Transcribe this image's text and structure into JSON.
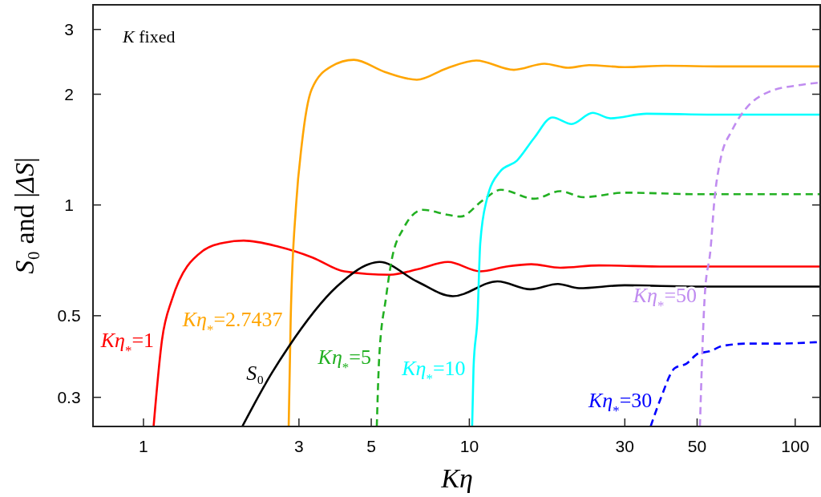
{
  "chart_data": {
    "type": "line",
    "xlabel": "Kη",
    "ylabel": "S₀   and   |ΔS|",
    "log": "xy",
    "xlim": [
      0.7,
      120
    ],
    "xticks": [
      1,
      3,
      5,
      10,
      30,
      50,
      100
    ],
    "ylim": [
      0.25,
      3.5
    ],
    "yticks": [
      0.3,
      0.5,
      1,
      2,
      3
    ],
    "grid": false,
    "marker": "none",
    "series": [
      {
        "name": "Kη$_{*}$=1",
        "color": "#ff0000",
        "line_style": "solid",
        "x": [
          1.074,
          1.14,
          1.22,
          1.52,
          1.77,
          2.03,
          2.6,
          3.3,
          4.13,
          5.7,
          7.0,
          8.6,
          10.8,
          13.0,
          15.5,
          19,
          25,
          40,
          70,
          120
        ],
        "values": [
          0.25,
          0.43,
          0.55,
          0.75,
          0.79,
          0.8,
          0.77,
          0.72,
          0.66,
          0.646,
          0.67,
          0.7,
          0.66,
          0.68,
          0.69,
          0.675,
          0.685,
          0.68,
          0.68,
          0.68
        ]
      },
      {
        "name": "Kη$_{*}$=2.7437",
        "color": "#ffa500",
        "line_style": "solid",
        "x": [
          2.79,
          2.83,
          2.94,
          3.06,
          3.28,
          3.77,
          4.42,
          5.5,
          6.9,
          8.5,
          10.5,
          13.7,
          17.0,
          20.1,
          23.3,
          30,
          40,
          60,
          120
        ],
        "values": [
          0.25,
          0.49,
          1.0,
          1.46,
          2.06,
          2.38,
          2.48,
          2.3,
          2.19,
          2.35,
          2.47,
          2.33,
          2.42,
          2.36,
          2.4,
          2.37,
          2.39,
          2.38,
          2.38
        ]
      },
      {
        "name": "S₀",
        "color": "#000000",
        "line_style": "solid",
        "x": [
          2.01,
          2.48,
          2.78,
          3.92,
          4.9,
          5.3,
          6.9,
          8.9,
          12.2,
          15.4,
          18.7,
          21.7,
          30,
          50,
          120
        ],
        "values": [
          0.25,
          0.35,
          0.41,
          0.6,
          0.69,
          0.7,
          0.62,
          0.565,
          0.62,
          0.59,
          0.61,
          0.594,
          0.605,
          0.6,
          0.6
        ]
      },
      {
        "name": "Kη$_{*}$=5",
        "color": "#22b022",
        "line_style": "dashed",
        "x": [
          5.2,
          5.29,
          5.55,
          5.78,
          6.26,
          7.2,
          8.6,
          9.4,
          11.0,
          12.5,
          15.8,
          19.0,
          22.4,
          30,
          50,
          120
        ],
        "values": [
          0.25,
          0.386,
          0.56,
          0.71,
          0.86,
          0.97,
          0.94,
          0.93,
          1.03,
          1.1,
          1.04,
          1.09,
          1.05,
          1.08,
          1.07,
          1.07
        ]
      },
      {
        "name": "Kη$_{*}$=10",
        "color": "#00ffff",
        "line_style": "solid",
        "x": [
          10.2,
          10.3,
          10.6,
          10.8,
          11.3,
          12.4,
          14.0,
          15.8,
          18.0,
          20.6,
          23.9,
          27.1,
          35,
          60,
          120
        ],
        "values": [
          0.25,
          0.36,
          0.5,
          0.785,
          1.03,
          1.23,
          1.32,
          1.52,
          1.73,
          1.66,
          1.78,
          1.72,
          1.77,
          1.76,
          1.76
        ]
      },
      {
        "name": "Kη$_{*}$=30",
        "color": "#0000ff",
        "line_style": "dashed",
        "x": [
          36,
          38.5,
          42.7,
          46.3,
          50.5,
          54.5,
          60,
          72,
          88,
          118
        ],
        "values": [
          0.25,
          0.295,
          0.36,
          0.37,
          0.395,
          0.4,
          0.414,
          0.42,
          0.42,
          0.424
        ]
      },
      {
        "name": "Kη$_{*}$=50",
        "color": "#c08cf0",
        "line_style": "dashed",
        "x": [
          51,
          52.8,
          55.0,
          56.5,
          58.9,
          64.1,
          70.3,
          83,
          104,
          118
        ],
        "values": [
          0.25,
          0.57,
          0.76,
          1.03,
          1.32,
          1.6,
          1.82,
          2.03,
          2.12,
          2.15
        ]
      }
    ],
    "annotations": [
      "K fixed"
    ]
  }
}
